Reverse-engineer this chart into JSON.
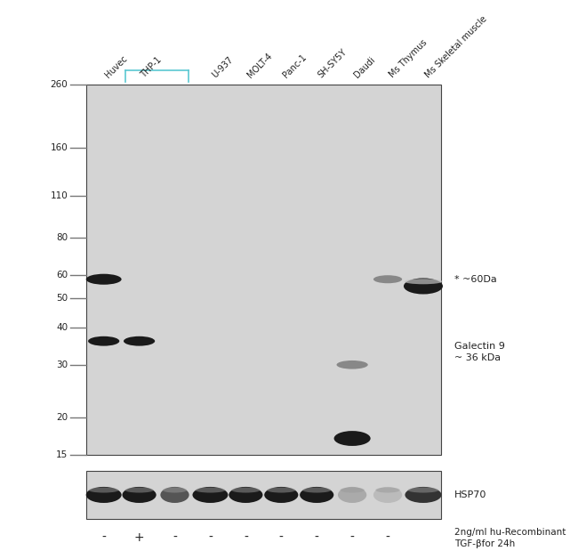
{
  "bg_color": "#e8e8e8",
  "white_bg": "#ffffff",
  "lane_labels": [
    "Huvec",
    "THP-1",
    "",
    "U-937",
    "MOLT-4",
    "Panc-1",
    "SH-SY5Y",
    "Daudi",
    "Ms Thymus",
    "Ms Skeletal muscle"
  ],
  "mw_markers": [
    260,
    160,
    110,
    80,
    60,
    50,
    40,
    30,
    20,
    15
  ],
  "plus_minus_labels": [
    "-",
    "+",
    "-",
    "-",
    "-",
    "-",
    "-",
    "-",
    "-"
  ],
  "bottom_label": "2ng/ml hu-Recombinant\nTGF-βfor 24h",
  "annotation_60da": "* ~60Da",
  "annotation_gal9": "Galectin 9\n~ 36 kDa",
  "annotation_hsp70": "HSP70",
  "thp1_bracket_color": "#5bc8d2",
  "band_color_dark": "#1a1a1a",
  "band_color_medium": "#555555",
  "band_color_light": "#888888",
  "gel_bg": "#d4d4d4"
}
